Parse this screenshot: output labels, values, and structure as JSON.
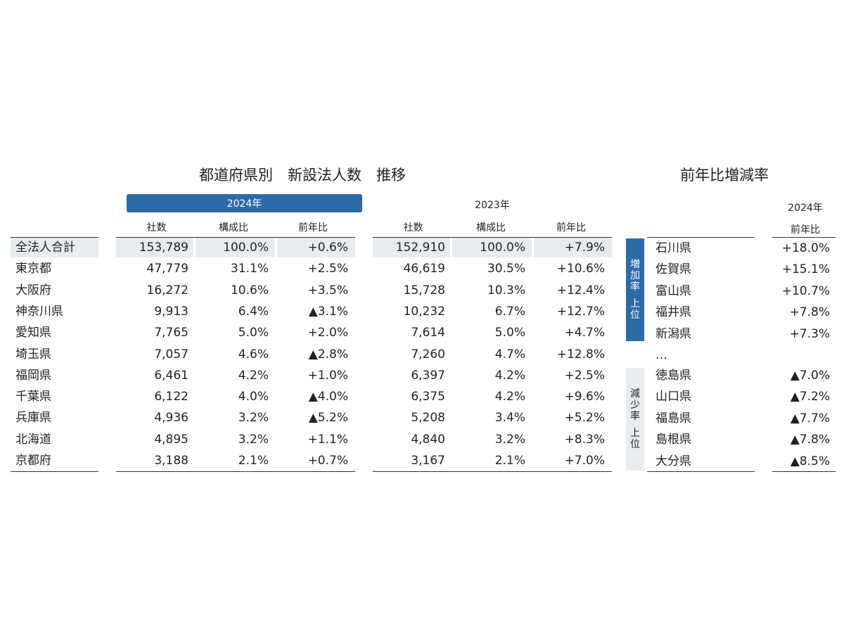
{
  "left_title": "都道府県別　新設法人数　推移",
  "right_title": "前年比増減率",
  "year_2024_label": "2024年",
  "year_2023_label": "2023年",
  "col_headers": [
    "社数",
    "構成比",
    "前年比"
  ],
  "brand_color": "#2e6aa6",
  "prefecture_table": [
    {
      "name": "全法人合計",
      "c24": "153,789",
      "r24": "100.0%",
      "y24": "+0.6%",
      "c23": "152,910",
      "r23": "100.0%",
      "y23": "+7.9%"
    },
    {
      "name": "東京都",
      "c24": "47,779",
      "r24": "31.1%",
      "y24": "+2.5%",
      "c23": "46,619",
      "r23": "30.5%",
      "y23": "+10.6%"
    },
    {
      "name": "大阪府",
      "c24": "16,272",
      "r24": "10.6%",
      "y24": "+3.5%",
      "c23": "15,728",
      "r23": "10.3%",
      "y23": "+12.4%"
    },
    {
      "name": "神奈川県",
      "c24": "9,913",
      "r24": "6.4%",
      "y24": "▲3.1%",
      "c23": "10,232",
      "r23": "6.7%",
      "y23": "+12.7%"
    },
    {
      "name": "愛知県",
      "c24": "7,765",
      "r24": "5.0%",
      "y24": "+2.0%",
      "c23": "7,614",
      "r23": "5.0%",
      "y23": "+4.7%"
    },
    {
      "name": "埼玉県",
      "c24": "7,057",
      "r24": "4.6%",
      "y24": "▲2.8%",
      "c23": "7,260",
      "r23": "4.7%",
      "y23": "+12.8%"
    },
    {
      "name": "福岡県",
      "c24": "6,461",
      "r24": "4.2%",
      "y24": "+1.0%",
      "c23": "6,397",
      "r23": "4.2%",
      "y23": "+2.5%"
    },
    {
      "name": "千葉県",
      "c24": "6,122",
      "r24": "4.0%",
      "y24": "▲4.0%",
      "c23": "6,375",
      "r23": "4.2%",
      "y23": "+9.6%"
    },
    {
      "name": "兵庫県",
      "c24": "4,936",
      "r24": "3.2%",
      "y24": "▲5.2%",
      "c23": "5,208",
      "r23": "3.4%",
      "y23": "+5.2%"
    },
    {
      "name": "北海道",
      "c24": "4,895",
      "r24": "3.2%",
      "y24": "+1.1%",
      "c23": "4,840",
      "r23": "3.2%",
      "y23": "+8.3%"
    },
    {
      "name": "京都府",
      "c24": "3,188",
      "r24": "2.1%",
      "y24": "+0.7%",
      "c23": "3,167",
      "r23": "2.1%",
      "y23": "+7.0%"
    }
  ],
  "rate_table": {
    "year_label": "2024年",
    "col_header": "前年比",
    "increase_label": [
      "増",
      "加",
      "率",
      "",
      "上",
      "位"
    ],
    "decrease_label": [
      "減",
      "少",
      "率",
      "",
      "上",
      "位"
    ],
    "increase": [
      {
        "name": "石川県",
        "value": "+18.0%"
      },
      {
        "name": "佐賀県",
        "value": "+15.1%"
      },
      {
        "name": "富山県",
        "value": "+10.7%"
      },
      {
        "name": "福井県",
        "value": "+7.8%"
      },
      {
        "name": "新潟県",
        "value": "+7.3%"
      }
    ],
    "ellipsis": "…",
    "decrease": [
      {
        "name": "徳島県",
        "value": "▲7.0%"
      },
      {
        "name": "山口県",
        "value": "▲7.2%"
      },
      {
        "name": "福島県",
        "value": "▲7.7%"
      },
      {
        "name": "島根県",
        "value": "▲7.8%"
      },
      {
        "name": "大分県",
        "value": "▲8.5%"
      }
    ]
  }
}
